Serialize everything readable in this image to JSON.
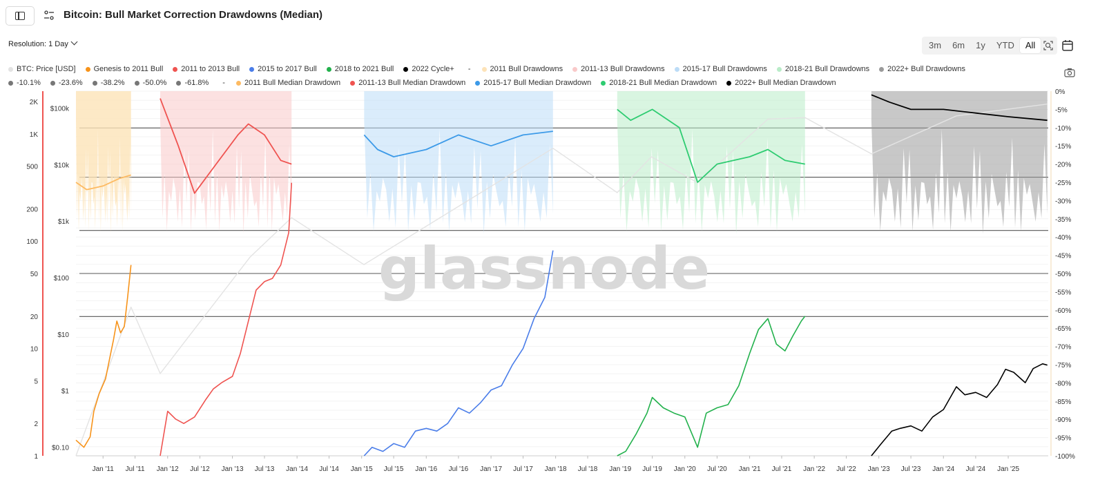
{
  "header": {
    "title": "Bitcoin: Bull Market Correction Drawdowns (Median)",
    "resolution_label": "Resolution: 1 Day",
    "ranges": [
      "3m",
      "6m",
      "1y",
      "YTD",
      "All"
    ],
    "active_range": "All"
  },
  "legend": {
    "row1": [
      {
        "label": "BTC: Price [USD]",
        "color": "#e3e3e3"
      },
      {
        "label": "Genesis to 2011 Bull",
        "color": "#f7931a"
      },
      {
        "label": "2011 to 2013 Bull",
        "color": "#ef5350"
      },
      {
        "label": "2015 to 2017 Bull",
        "color": "#4a7de9"
      },
      {
        "label": "2018 to 2021 Bull",
        "color": "#22b14c"
      },
      {
        "label": "2022 Cycle+",
        "color": "#000000"
      },
      {
        "label": "-",
        "color": ""
      },
      {
        "label": "2011 Bull Drawdowns",
        "color": "#fde3b8"
      },
      {
        "label": "2011-13 Bull Drawdowns",
        "color": "#f9c9c9"
      },
      {
        "label": "2015-17 Bull Drawdowns",
        "color": "#bcdcf7"
      },
      {
        "label": "2018-21 Bull Drawdowns",
        "color": "#b9ecc8"
      },
      {
        "label": "2022+ Bull Drawdowns",
        "color": "#9a9a9a"
      }
    ],
    "row2": [
      {
        "label": "-10.1%",
        "color": "#777777"
      },
      {
        "label": "-23.6%",
        "color": "#777777"
      },
      {
        "label": "-38.2%",
        "color": "#777777"
      },
      {
        "label": "-50.0%",
        "color": "#777777"
      },
      {
        "label": "-61.8%",
        "color": "#777777"
      },
      {
        "label": "-",
        "color": ""
      },
      {
        "label": "2011 Bull Median Drawdown",
        "color": "#fdba62"
      },
      {
        "label": "2011-13 Bull Median Drawdown",
        "color": "#ef5350"
      },
      {
        "label": "2015-17 Bull Median Drawdown",
        "color": "#3c9ae8"
      },
      {
        "label": "2018-21 Bull Median Drawdown",
        "color": "#2ecc71"
      },
      {
        "label": "2022+ Bull Median Drawdown",
        "color": "#000000"
      }
    ]
  },
  "watermark": "glassnode",
  "chart_data": {
    "type": "line",
    "title": "Bitcoin: Bull Market Correction Drawdowns (Median)",
    "x_ticks": [
      "Jan '11",
      "Jul '11",
      "Jan '12",
      "Jul '12",
      "Jan '13",
      "Jul '13",
      "Jan '14",
      "Jul '14",
      "Jan '15",
      "Jul '15",
      "Jan '16",
      "Jul '16",
      "Jan '17",
      "Jul '17",
      "Jan '18",
      "Jul '18",
      "Jan '19",
      "Jul '19",
      "Jan '20",
      "Jul '20",
      "Jan '21",
      "Jul '21",
      "Jan '22",
      "Jul '22",
      "Jan '23",
      "Jul '23",
      "Jan '24",
      "Jul '24",
      "Jan '25"
    ],
    "left_axis_ticks": [
      "2K",
      "1K",
      "500",
      "200",
      "100",
      "50",
      "20",
      "10",
      "5",
      "2",
      "1"
    ],
    "price_axis_ticks": [
      "$100k",
      "$10k",
      "$1k",
      "$100",
      "$10",
      "$1",
      "$0.10"
    ],
    "right_axis_ticks": [
      "0%",
      "-5%",
      "-10%",
      "-15%",
      "-20%",
      "-25%",
      "-30%",
      "-35%",
      "-40%",
      "-45%",
      "-50%",
      "-55%",
      "-60%",
      "-65%",
      "-70%",
      "-75%",
      "-80%",
      "-85%",
      "-90%",
      "-95%",
      "-100%"
    ],
    "fib_levels": [
      -10.1,
      -23.6,
      -38.2,
      -50.0,
      -61.8
    ],
    "y_scale": "log",
    "legend_placement": "top",
    "series": [
      {
        "name": "Genesis to 2011 Bull",
        "color": "#f7931a",
        "x": [
          "2010-08-01",
          "2010-09-15",
          "2010-10-20",
          "2010-11-10",
          "2010-12-10",
          "2011-01-15",
          "2011-02-10",
          "2011-03-01",
          "2011-03-20",
          "2011-04-10",
          "2011-05-01",
          "2011-05-20",
          "2011-06-08"
        ],
        "y": [
          1.4,
          1.2,
          1.5,
          2.6,
          3.8,
          5.2,
          8.5,
          12.0,
          18.0,
          14.0,
          16.0,
          30.0,
          60.0
        ]
      },
      {
        "name": "2011 to 2013 Bull",
        "color": "#ef5350",
        "x": [
          "2011-11-20",
          "2012-01-01",
          "2012-02-15",
          "2012-04-01",
          "2012-06-01",
          "2012-08-01",
          "2012-09-15",
          "2012-11-01",
          "2013-01-01",
          "2013-02-15",
          "2013-04-01",
          "2013-05-15",
          "2013-07-01",
          "2013-08-15",
          "2013-10-01",
          "2013-11-15",
          "2013-12-01"
        ],
        "y": [
          1.0,
          2.6,
          2.2,
          2.0,
          2.3,
          3.3,
          4.2,
          4.8,
          5.5,
          9.0,
          18.0,
          35.0,
          42.0,
          45.0,
          60.0,
          120.0,
          350.0
        ]
      },
      {
        "name": "2015 to 2017 Bull",
        "color": "#4a7de9",
        "x": [
          "2015-01-15",
          "2015-03-01",
          "2015-05-01",
          "2015-07-01",
          "2015-09-01",
          "2015-11-01",
          "2016-01-01",
          "2016-03-01",
          "2016-05-01",
          "2016-07-01",
          "2016-09-01",
          "2016-11-01",
          "2017-01-01",
          "2017-03-01",
          "2017-05-01",
          "2017-07-01",
          "2017-09-01",
          "2017-11-01",
          "2017-12-17"
        ],
        "y": [
          1.0,
          1.2,
          1.1,
          1.3,
          1.2,
          1.7,
          1.8,
          1.7,
          2.0,
          2.8,
          2.5,
          3.1,
          4.1,
          4.5,
          7.0,
          10.0,
          19.0,
          30.0,
          82.0
        ]
      },
      {
        "name": "2018 to 2021 Bull",
        "color": "#22b14c",
        "x": [
          "2018-12-15",
          "2019-02-01",
          "2019-04-01",
          "2019-06-01",
          "2019-07-01",
          "2019-09-01",
          "2019-11-01",
          "2020-01-01",
          "2020-03-13",
          "2020-05-01",
          "2020-07-01",
          "2020-09-01",
          "2020-11-01",
          "2021-01-01",
          "2021-02-20",
          "2021-04-14",
          "2021-06-01",
          "2021-07-20",
          "2021-09-01",
          "2021-10-20",
          "2021-11-10"
        ],
        "y": [
          1.0,
          1.1,
          1.6,
          2.5,
          3.5,
          2.8,
          2.5,
          2.3,
          1.2,
          2.5,
          2.8,
          3.0,
          4.5,
          9.0,
          15.0,
          19.0,
          11.0,
          9.5,
          13.0,
          18.0,
          20.0
        ]
      },
      {
        "name": "2022 Cycle+",
        "color": "#000000",
        "x": [
          "2022-11-20",
          "2023-01-15",
          "2023-03-15",
          "2023-05-01",
          "2023-07-01",
          "2023-09-01",
          "2023-11-01",
          "2024-01-01",
          "2024-03-14",
          "2024-05-01",
          "2024-07-01",
          "2024-09-01",
          "2024-11-01",
          "2024-12-17",
          "2025-02-01",
          "2025-04-07",
          "2025-05-22",
          "2025-07-14",
          "2025-08-10"
        ],
        "y": [
          1.0,
          1.3,
          1.7,
          1.8,
          1.9,
          1.7,
          2.3,
          2.7,
          4.4,
          3.7,
          3.9,
          3.5,
          4.6,
          6.4,
          6.0,
          4.8,
          6.5,
          7.2,
          7.0
        ]
      },
      {
        "name": "BTC: Price [USD]",
        "color": "#e3e3e3",
        "x": [
          "2010-08-01",
          "2011-06-08",
          "2011-11-20",
          "2013-04-10",
          "2013-12-01",
          "2015-01-14",
          "2017-12-17",
          "2018-12-15",
          "2019-06-26",
          "2020-03-13",
          "2021-04-14",
          "2021-11-10",
          "2022-11-20",
          "2024-03-14",
          "2025-08-10"
        ],
        "y": [
          0.07,
          30,
          2,
          230,
          1150,
          170,
          19500,
          3200,
          13800,
          4800,
          64000,
          68000,
          15500,
          73000,
          118000
        ]
      }
    ],
    "median_drawdowns": [
      {
        "name": "2011 Bull Median Drawdown",
        "color": "#fdba62",
        "x": [
          "2010-08-01",
          "2010-10-01",
          "2011-01-01",
          "2011-04-01",
          "2011-06-08"
        ],
        "y": [
          -25,
          -27,
          -26,
          -24,
          -23
        ]
      },
      {
        "name": "2011-13 Bull Median Drawdown",
        "color": "#ef5350",
        "x": [
          "2011-11-20",
          "2012-03-01",
          "2012-06-01",
          "2012-10-01",
          "2013-02-01",
          "2013-04-01",
          "2013-07-01",
          "2013-10-01",
          "2013-12-01"
        ],
        "y": [
          -2,
          -15,
          -28,
          -20,
          -12,
          -9,
          -12,
          -19,
          -20
        ]
      },
      {
        "name": "2015-17 Bull Median Drawdown",
        "color": "#3c9ae8",
        "x": [
          "2015-01-15",
          "2015-04-01",
          "2015-07-01",
          "2016-01-01",
          "2016-07-01",
          "2017-01-01",
          "2017-07-01",
          "2017-12-17"
        ],
        "y": [
          -12,
          -16,
          -18,
          -16,
          -12,
          -15,
          -12,
          -11
        ]
      },
      {
        "name": "2018-21 Bull Median Drawdown",
        "color": "#2ecc71",
        "x": [
          "2018-12-15",
          "2019-03-01",
          "2019-07-01",
          "2019-12-01",
          "2020-03-13",
          "2020-07-01",
          "2021-01-01",
          "2021-04-14",
          "2021-07-20",
          "2021-11-10"
        ],
        "y": [
          -5,
          -8,
          -5,
          -10,
          -25,
          -20,
          -18,
          -16,
          -19,
          -20
        ]
      },
      {
        "name": "2022+ Bull Median Drawdown",
        "color": "#000000",
        "x": [
          "2022-11-20",
          "2023-03-01",
          "2023-07-01",
          "2024-01-01",
          "2024-07-01",
          "2025-01-01",
          "2025-08-10"
        ],
        "y": [
          -1,
          -3,
          -5,
          -5,
          -6,
          -7,
          -8
        ]
      }
    ]
  }
}
